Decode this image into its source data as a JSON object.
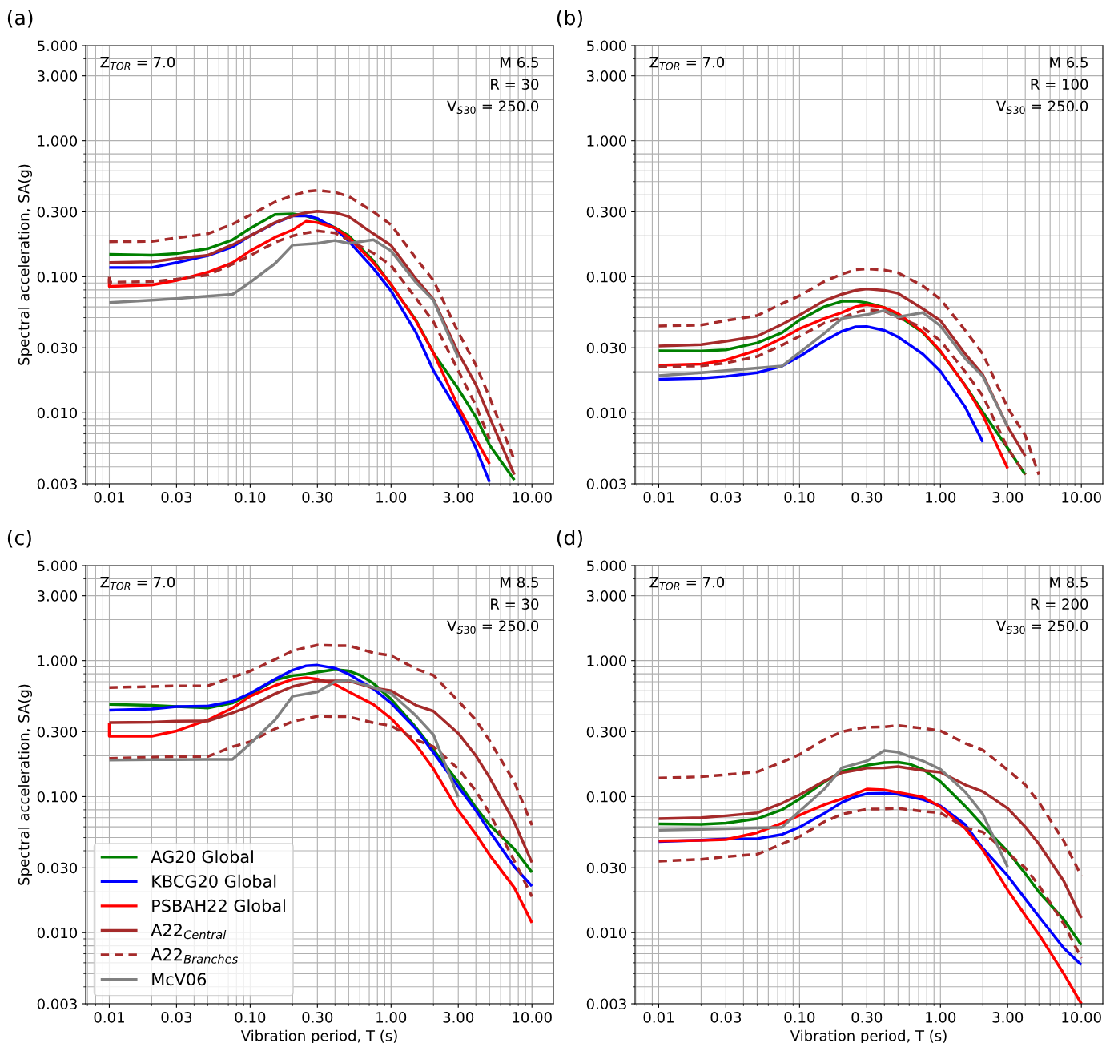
{
  "chart_data": [
    {
      "type": "line",
      "log": "xy",
      "grid": true,
      "legend": false,
      "ylabel": "Spectral acceleration, SA(g)",
      "annotations": [
        "(a)",
        "Z$_{TOR}$ = 7.0",
        "M 6.5",
        "R = 30",
        "V$_{S30}$ = 250.0"
      ],
      "x": [
        0.01,
        0.02,
        0.03,
        0.05,
        0.075,
        0.1,
        0.15,
        0.2,
        0.25,
        0.3,
        0.4,
        0.5,
        0.75,
        1,
        1.5,
        2,
        3,
        4,
        5,
        7.5
      ],
      "xlim": [
        0.0068,
        14.2
      ],
      "ylim": [
        0.003,
        5
      ],
      "xticks": [
        {
          "value": 0.01,
          "label": "0.01"
        },
        {
          "value": 0.03,
          "label": "0.03"
        },
        {
          "value": 0.1,
          "label": "0.10"
        },
        {
          "value": 0.3,
          "label": "0.30"
        },
        {
          "value": 1,
          "label": "1.00"
        },
        {
          "value": 3,
          "label": "3.00"
        },
        {
          "value": 10,
          "label": "10.00"
        }
      ],
      "yticks": [
        {
          "value": 0.003,
          "label": "0.003"
        },
        {
          "value": 0.01,
          "label": "0.010"
        },
        {
          "value": 0.03,
          "label": "0.030"
        },
        {
          "value": 0.1,
          "label": "0.100"
        },
        {
          "value": 0.3,
          "label": "0.300"
        },
        {
          "value": 1,
          "label": "1.000"
        },
        {
          "value": 3,
          "label": "3.000"
        },
        {
          "value": 5,
          "label": "5.000"
        }
      ],
      "series": [
        {
          "color": "#008000",
          "values": [
            0.146,
            0.144,
            0.148,
            0.161,
            0.187,
            0.227,
            0.287,
            0.29,
            0.28,
            0.262,
            0.23,
            0.2,
            0.131,
            0.087,
            0.048,
            0.0275,
            0.015,
            0.0093,
            0.0058,
            0.0032
          ]
        },
        {
          "color": "#0000ff",
          "x": [
            0.01,
            0.02,
            0.03,
            0.05,
            0.075,
            0.1,
            0.15,
            0.2,
            0.25,
            0.3,
            0.4,
            0.5,
            0.75,
            1,
            1.5,
            2,
            3,
            4,
            5
          ],
          "values": [
            0.117,
            0.117,
            0.127,
            0.143,
            0.166,
            0.2,
            0.248,
            0.28,
            0.281,
            0.268,
            0.227,
            0.183,
            0.115,
            0.0787,
            0.039,
            0.0204,
            0.0102,
            0.0055,
            0.0031
          ]
        },
        {
          "color": "#ff0000",
          "x": [
            0.01,
            0.01,
            0.02,
            0.03,
            0.05,
            0.075,
            0.1,
            0.15,
            0.2,
            0.25,
            0.3,
            0.4,
            0.5,
            0.75,
            1,
            1.5,
            2,
            3,
            4,
            5
          ],
          "values": [
            0.097,
            0.085,
            0.087,
            0.094,
            0.108,
            0.127,
            0.155,
            0.195,
            0.221,
            0.256,
            0.25,
            0.229,
            0.195,
            0.127,
            0.088,
            0.0474,
            0.0275,
            0.0111,
            0.0064,
            0.0042
          ]
        },
        {
          "color": "#a52a2a",
          "values": [
            0.127,
            0.129,
            0.136,
            0.144,
            0.172,
            0.2,
            0.25,
            0.28,
            0.296,
            0.303,
            0.296,
            0.277,
            0.207,
            0.17,
            0.0967,
            0.0681,
            0.0275,
            0.0161,
            0.0093,
            0.0035
          ]
        },
        {
          "color": "#a52a2a",
          "line_style": "dashed",
          "values": [
            0.181,
            0.182,
            0.193,
            0.207,
            0.244,
            0.284,
            0.355,
            0.395,
            0.423,
            0.432,
            0.418,
            0.39,
            0.3,
            0.241,
            0.137,
            0.094,
            0.039,
            0.0224,
            0.013,
            0.0045
          ]
        },
        {
          "color": "#a52a2a",
          "line_style": "dashed",
          "x": [
            0.01,
            0.01,
            0.02,
            0.03,
            0.05,
            0.075,
            0.1,
            0.15,
            0.2,
            0.25,
            0.3,
            0.4,
            0.5,
            0.75,
            1,
            1.5,
            2,
            3,
            4,
            5
          ],
          "values": [
            0.1,
            0.091,
            0.092,
            0.096,
            0.103,
            0.124,
            0.143,
            0.179,
            0.2,
            0.21,
            0.217,
            0.21,
            0.187,
            0.149,
            0.121,
            0.0696,
            0.0467,
            0.0204,
            0.0113,
            0.0064
          ]
        },
        {
          "color": "#808080",
          "x": [
            0.01,
            0.02,
            0.03,
            0.05,
            0.075,
            0.1,
            0.15,
            0.2,
            0.3,
            0.4,
            0.5,
            0.75,
            1,
            1.5,
            2,
            3
          ],
          "values": [
            0.0646,
            0.0672,
            0.069,
            0.0719,
            0.0741,
            0.091,
            0.125,
            0.171,
            0.176,
            0.185,
            0.176,
            0.187,
            0.155,
            0.091,
            0.0672,
            0.0254
          ]
        }
      ]
    },
    {
      "type": "line",
      "log": "xy",
      "grid": true,
      "legend": false,
      "annotations": [
        "(b)",
        "Z$_{TOR}$ = 7.0",
        "M 6.5",
        "R = 100",
        "V$_{S30}$ = 250.0"
      ],
      "x": [
        0.01,
        0.02,
        0.03,
        0.05,
        0.075,
        0.1,
        0.15,
        0.2,
        0.25,
        0.3,
        0.4,
        0.5,
        0.75,
        1,
        1.5,
        2,
        3,
        4,
        5
      ],
      "xlim": [
        0.0068,
        14.2
      ],
      "ylim": [
        0.003,
        5
      ],
      "xticks": [
        {
          "value": 0.01,
          "label": "0.01"
        },
        {
          "value": 0.03,
          "label": "0.03"
        },
        {
          "value": 0.1,
          "label": "0.10"
        },
        {
          "value": 0.3,
          "label": "0.30"
        },
        {
          "value": 1,
          "label": "1.00"
        },
        {
          "value": 3,
          "label": "3.00"
        },
        {
          "value": 10,
          "label": "10.00"
        }
      ],
      "yticks": [
        {
          "value": 0.003,
          "label": "0.003"
        },
        {
          "value": 0.01,
          "label": "0.010"
        },
        {
          "value": 0.03,
          "label": "0.030"
        },
        {
          "value": 0.1,
          "label": "0.100"
        },
        {
          "value": 0.3,
          "label": "0.300"
        },
        {
          "value": 1,
          "label": "1.000"
        },
        {
          "value": 3,
          "label": "3.000"
        },
        {
          "value": 5,
          "label": "5.000"
        }
      ],
      "series": [
        {
          "color": "#008000",
          "x": [
            0.01,
            0.02,
            0.03,
            0.05,
            0.075,
            0.1,
            0.15,
            0.2,
            0.25,
            0.3,
            0.4,
            0.5,
            0.75,
            1,
            1.5,
            2,
            3,
            4
          ],
          "values": [
            0.0285,
            0.0284,
            0.029,
            0.0326,
            0.0387,
            0.048,
            0.0602,
            0.066,
            0.0662,
            0.0643,
            0.0593,
            0.0518,
            0.0389,
            0.028,
            0.0159,
            0.0101,
            0.0055,
            0.0035
          ]
        },
        {
          "color": "#0000ff",
          "x": [
            0.01,
            0.02,
            0.03,
            0.05,
            0.075,
            0.1,
            0.15,
            0.2,
            0.25,
            0.3,
            0.4,
            0.5,
            0.75,
            1,
            1.5,
            2
          ],
          "values": [
            0.0176,
            0.0179,
            0.0185,
            0.0197,
            0.022,
            0.0259,
            0.0338,
            0.0397,
            0.0428,
            0.043,
            0.0403,
            0.0361,
            0.027,
            0.0202,
            0.011,
            0.0061
          ]
        },
        {
          "color": "#ff0000",
          "x": [
            0.01,
            0.02,
            0.03,
            0.05,
            0.075,
            0.1,
            0.15,
            0.2,
            0.25,
            0.3,
            0.4,
            0.5,
            0.75,
            1,
            1.5,
            2,
            3
          ],
          "values": [
            0.0223,
            0.0228,
            0.0244,
            0.0288,
            0.0352,
            0.0414,
            0.0493,
            0.0545,
            0.0602,
            0.0624,
            0.0593,
            0.0537,
            0.0393,
            0.0284,
            0.0158,
            0.0096,
            0.0039
          ]
        },
        {
          "color": "#a52a2a",
          "x": [
            0.01,
            0.02,
            0.03,
            0.05,
            0.075,
            0.1,
            0.15,
            0.2,
            0.25,
            0.3,
            0.4,
            0.5,
            0.75,
            1,
            1.5,
            2,
            3,
            4
          ],
          "values": [
            0.0309,
            0.0317,
            0.0335,
            0.0365,
            0.0446,
            0.0523,
            0.0666,
            0.0744,
            0.0794,
            0.0814,
            0.0794,
            0.0755,
            0.0581,
            0.0476,
            0.027,
            0.019,
            0.0079,
            0.0048
          ]
        },
        {
          "color": "#a52a2a",
          "line_style": "dashed",
          "values": [
            0.0434,
            0.0441,
            0.0476,
            0.0518,
            0.0633,
            0.0725,
            0.0923,
            0.1046,
            0.1128,
            0.1145,
            0.112,
            0.107,
            0.0856,
            0.0683,
            0.0403,
            0.027,
            0.0109,
            0.0068,
            0.0035
          ]
        },
        {
          "color": "#a52a2a",
          "line_style": "dashed",
          "x": [
            0.01,
            0.02,
            0.03,
            0.05,
            0.075,
            0.1,
            0.15,
            0.2,
            0.25,
            0.3,
            0.4,
            0.5,
            0.75,
            1,
            1.5,
            2,
            3,
            4
          ],
          "values": [
            0.0218,
            0.0221,
            0.0232,
            0.0259,
            0.0314,
            0.0365,
            0.0457,
            0.05,
            0.0545,
            0.0573,
            0.0558,
            0.05,
            0.0424,
            0.0338,
            0.02,
            0.0133,
            0.0055,
            0.0035
          ]
        },
        {
          "color": "#808080",
          "x": [
            0.01,
            0.02,
            0.03,
            0.05,
            0.075,
            0.1,
            0.15,
            0.2,
            0.3,
            0.4,
            0.5,
            0.75,
            1,
            1.5,
            2,
            3
          ],
          "values": [
            0.0187,
            0.0197,
            0.0204,
            0.0213,
            0.022,
            0.0277,
            0.0383,
            0.0493,
            0.0526,
            0.0564,
            0.0505,
            0.0545,
            0.0434,
            0.025,
            0.0185,
            0.0079
          ]
        }
      ]
    },
    {
      "type": "line",
      "log": "xy",
      "grid": true,
      "legend": "bottom left",
      "ylabel": "Spectral acceleration, SA(g)",
      "xlabel": "Vibration period, T (s)",
      "annotations": [
        "(c)",
        "Z$_{TOR}$ = 7.0",
        "M 8.5",
        "R = 30",
        "V$_{S30}$ = 250.0"
      ],
      "x": [
        0.01,
        0.02,
        0.03,
        0.05,
        0.075,
        0.1,
        0.15,
        0.2,
        0.25,
        0.3,
        0.4,
        0.5,
        0.75,
        1,
        1.5,
        2,
        3,
        4,
        5,
        7.5,
        10
      ],
      "xlim": [
        0.0068,
        14.2
      ],
      "ylim": [
        0.003,
        5
      ],
      "xticks": [
        {
          "value": 0.01,
          "label": "0.01"
        },
        {
          "value": 0.03,
          "label": "0.03"
        },
        {
          "value": 0.1,
          "label": "0.10"
        },
        {
          "value": 0.3,
          "label": "0.30"
        },
        {
          "value": 1,
          "label": "1.00"
        },
        {
          "value": 3,
          "label": "3.00"
        },
        {
          "value": 10,
          "label": "10.00"
        }
      ],
      "yticks": [
        {
          "value": 0.003,
          "label": "0.003"
        },
        {
          "value": 0.01,
          "label": "0.010"
        },
        {
          "value": 0.03,
          "label": "0.030"
        },
        {
          "value": 0.1,
          "label": "0.100"
        },
        {
          "value": 0.3,
          "label": "0.300"
        },
        {
          "value": 1,
          "label": "1.000"
        },
        {
          "value": 3,
          "label": "3.000"
        },
        {
          "value": 5,
          "label": "5.000"
        }
      ],
      "series": [
        {
          "name": "AG20 Global",
          "color": "#008000",
          "x": [
            0.01,
            0.02,
            0.03,
            0.05,
            0.075,
            0.1,
            0.15,
            0.2,
            0.25,
            0.3,
            0.4,
            0.5,
            0.6,
            0.75,
            1,
            1.5,
            2,
            3,
            4,
            5,
            7.5,
            10
          ],
          "values": [
            0.477,
            0.469,
            0.459,
            0.449,
            0.488,
            0.566,
            0.72,
            0.776,
            0.796,
            0.824,
            0.86,
            0.84,
            0.785,
            0.68,
            0.52,
            0.323,
            0.221,
            0.128,
            0.083,
            0.062,
            0.0412,
            0.0278
          ]
        },
        {
          "name": "KBCG20 Global",
          "color": "#0000ff",
          "values": [
            0.432,
            0.441,
            0.459,
            0.463,
            0.502,
            0.575,
            0.73,
            0.851,
            0.916,
            0.926,
            0.88,
            0.796,
            0.62,
            0.488,
            0.315,
            0.211,
            0.118,
            0.079,
            0.0557,
            0.0305,
            0.022
          ]
        },
        {
          "name": "PSBAH22 Global",
          "color": "#ff0000",
          "x": [
            0.01,
            0.01,
            0.02,
            0.03,
            0.05,
            0.075,
            0.1,
            0.15,
            0.2,
            0.25,
            0.3,
            0.4,
            0.5,
            0.75,
            1,
            1.5,
            2,
            3,
            4,
            5,
            7.5,
            10
          ],
          "values": [
            0.35,
            0.278,
            0.278,
            0.304,
            0.366,
            0.449,
            0.547,
            0.656,
            0.73,
            0.75,
            0.731,
            0.67,
            0.59,
            0.476,
            0.376,
            0.241,
            0.16,
            0.079,
            0.053,
            0.0373,
            0.0214,
            0.0118
          ]
        },
        {
          "name": "A22$_{Central}$",
          "color": "#a52a2a",
          "values": [
            0.35,
            0.353,
            0.359,
            0.36,
            0.413,
            0.463,
            0.57,
            0.645,
            0.68,
            0.71,
            0.71,
            0.71,
            0.63,
            0.6,
            0.47,
            0.425,
            0.292,
            0.2,
            0.138,
            0.0647,
            0.0328
          ]
        },
        {
          "name": "A22$_{Branches}$",
          "color": "#a52a2a",
          "line_style": "dashed",
          "values": [
            0.635,
            0.645,
            0.652,
            0.652,
            0.757,
            0.837,
            1.02,
            1.18,
            1.25,
            1.3,
            1.29,
            1.29,
            1.14,
            1.09,
            0.87,
            0.78,
            0.505,
            0.366,
            0.258,
            0.128,
            0.0616
          ]
        },
        {
          "color": "#a52a2a",
          "line_style": "dashed",
          "values": [
            0.191,
            0.195,
            0.197,
            0.197,
            0.233,
            0.253,
            0.315,
            0.357,
            0.375,
            0.39,
            0.388,
            0.387,
            0.349,
            0.332,
            0.262,
            0.233,
            0.16,
            0.11,
            0.0753,
            0.0337,
            0.0184
          ]
        },
        {
          "name": "McV06",
          "color": "#808080",
          "x": [
            0.01,
            0.02,
            0.03,
            0.05,
            0.075,
            0.1,
            0.15,
            0.2,
            0.3,
            0.4,
            0.5,
            0.75,
            1,
            1.5,
            2,
            3
          ],
          "values": [
            0.186,
            0.187,
            0.187,
            0.188,
            0.188,
            0.245,
            0.366,
            0.547,
            0.589,
            0.7,
            0.72,
            0.635,
            0.575,
            0.394,
            0.285,
            0.099
          ]
        }
      ]
    },
    {
      "type": "line",
      "log": "xy",
      "grid": true,
      "legend": false,
      "xlabel": "Vibration period, T (s)",
      "annotations": [
        "(d)",
        "Z$_{TOR}$ = 7.0",
        "M 8.5",
        "R = 200",
        "V$_{S30}$ = 250.0"
      ],
      "x": [
        0.01,
        0.02,
        0.03,
        0.05,
        0.075,
        0.1,
        0.15,
        0.2,
        0.25,
        0.3,
        0.4,
        0.5,
        0.75,
        1,
        1.5,
        2,
        3,
        4,
        5,
        7.5,
        10
      ],
      "xlim": [
        0.0068,
        14.2
      ],
      "ylim": [
        0.003,
        5
      ],
      "xticks": [
        {
          "value": 0.01,
          "label": "0.01"
        },
        {
          "value": 0.03,
          "label": "0.03"
        },
        {
          "value": 0.1,
          "label": "0.10"
        },
        {
          "value": 0.3,
          "label": "0.30"
        },
        {
          "value": 1,
          "label": "1.00"
        },
        {
          "value": 3,
          "label": "3.00"
        },
        {
          "value": 10,
          "label": "10.00"
        }
      ],
      "yticks": [
        {
          "value": 0.003,
          "label": "0.003"
        },
        {
          "value": 0.01,
          "label": "0.010"
        },
        {
          "value": 0.03,
          "label": "0.030"
        },
        {
          "value": 0.1,
          "label": "0.100"
        },
        {
          "value": 0.3,
          "label": "0.300"
        },
        {
          "value": 1,
          "label": "1.000"
        },
        {
          "value": 3,
          "label": "3.000"
        },
        {
          "value": 5,
          "label": "5.000"
        }
      ],
      "series": [
        {
          "color": "#008000",
          "x": [
            0.01,
            0.02,
            0.03,
            0.05,
            0.075,
            0.1,
            0.15,
            0.2,
            0.25,
            0.3,
            0.4,
            0.5,
            0.6,
            0.75,
            1,
            1.5,
            2,
            3,
            4,
            5,
            7.5,
            10
          ],
          "values": [
            0.063,
            0.0625,
            0.0638,
            0.0688,
            0.08,
            0.096,
            0.128,
            0.154,
            0.162,
            0.17,
            0.178,
            0.179,
            0.174,
            0.159,
            0.129,
            0.085,
            0.0613,
            0.0396,
            0.0272,
            0.0199,
            0.0125,
            0.0081
          ]
        },
        {
          "color": "#0000ff",
          "values": [
            0.0467,
            0.0479,
            0.0489,
            0.0491,
            0.0527,
            0.0597,
            0.0753,
            0.0907,
            0.1,
            0.105,
            0.106,
            0.104,
            0.0953,
            0.0854,
            0.0622,
            0.0417,
            0.0262,
            0.0177,
            0.0131,
            0.0077,
            0.0058
          ]
        },
        {
          "color": "#ff0000",
          "values": [
            0.0472,
            0.0477,
            0.0484,
            0.0543,
            0.0638,
            0.0731,
            0.087,
            0.0963,
            0.105,
            0.1136,
            0.112,
            0.1075,
            0.0993,
            0.0841,
            0.0583,
            0.0406,
            0.0206,
            0.0134,
            0.0097,
            0.005,
            0.003
          ]
        },
        {
          "color": "#a52a2a",
          "values": [
            0.0688,
            0.0699,
            0.0723,
            0.076,
            0.0893,
            0.103,
            0.13,
            0.15,
            0.156,
            0.162,
            0.163,
            0.166,
            0.156,
            0.151,
            0.122,
            0.109,
            0.082,
            0.06,
            0.0449,
            0.024,
            0.0128
          ]
        },
        {
          "color": "#a52a2a",
          "line_style": "dashed",
          "values": [
            0.137,
            0.14,
            0.145,
            0.152,
            0.179,
            0.204,
            0.263,
            0.3,
            0.315,
            0.324,
            0.326,
            0.334,
            0.318,
            0.305,
            0.247,
            0.22,
            0.157,
            0.122,
            0.0907,
            0.0472,
            0.0261
          ]
        },
        {
          "color": "#a52a2a",
          "line_style": "dashed",
          "values": [
            0.0335,
            0.0346,
            0.0362,
            0.0377,
            0.0449,
            0.0509,
            0.0654,
            0.0742,
            0.078,
            0.0808,
            0.0812,
            0.082,
            0.078,
            0.076,
            0.0592,
            0.0549,
            0.0386,
            0.03,
            0.0222,
            0.0116,
            0.0065
          ]
        },
        {
          "color": "#808080",
          "x": [
            0.01,
            0.02,
            0.03,
            0.05,
            0.075,
            0.1,
            0.15,
            0.2,
            0.3,
            0.4,
            0.5,
            0.75,
            1,
            1.5,
            2,
            3
          ],
          "values": [
            0.0568,
            0.0574,
            0.058,
            0.0589,
            0.0595,
            0.078,
            0.1136,
            0.163,
            0.183,
            0.218,
            0.212,
            0.183,
            0.159,
            0.108,
            0.0742,
            0.0304
          ]
        }
      ]
    }
  ]
}
